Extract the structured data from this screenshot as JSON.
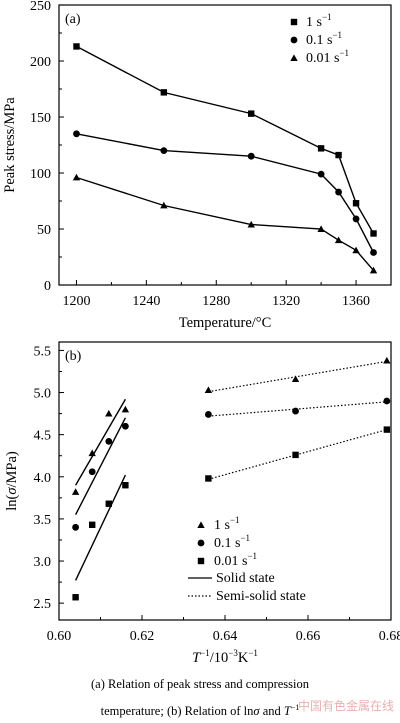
{
  "chart_data": [
    {
      "type": "line",
      "panel_label": "(a)",
      "xlabel": "Temperature/°C",
      "ylabel": "Peak stress/MPa",
      "xlim": [
        1190,
        1380
      ],
      "ylim": [
        0,
        250
      ],
      "x_ticks": [
        "1200",
        "1240",
        "1280",
        "1320",
        "1360"
      ],
      "y_ticks": [
        "0",
        "50",
        "100",
        "150",
        "200",
        "250"
      ],
      "legend_position": "top-right",
      "series": [
        {
          "name": "1 s",
          "sup": "−1",
          "marker": "square",
          "points": [
            [
              1200,
              213
            ],
            [
              1250,
              172
            ],
            [
              1300,
              153
            ],
            [
              1340,
              122
            ],
            [
              1350,
              116
            ],
            [
              1360,
              73
            ],
            [
              1370,
              46
            ]
          ]
        },
        {
          "name": "0.1 s",
          "sup": "−1",
          "marker": "circle",
          "points": [
            [
              1200,
              135
            ],
            [
              1250,
              120
            ],
            [
              1300,
              115
            ],
            [
              1340,
              99
            ],
            [
              1350,
              83
            ],
            [
              1360,
              59
            ],
            [
              1370,
              29
            ]
          ]
        },
        {
          "name": "0.01 s",
          "sup": "−1",
          "marker": "triangle",
          "points": [
            [
              1200,
              96
            ],
            [
              1250,
              71
            ],
            [
              1300,
              54
            ],
            [
              1340,
              50
            ],
            [
              1350,
              40
            ],
            [
              1360,
              31
            ],
            [
              1370,
              13
            ]
          ]
        }
      ]
    },
    {
      "type": "scatter",
      "panel_label": "(b)",
      "xlabel_main": "T",
      "xlabel_sup1": "−1",
      "xlabel_mid": "/10",
      "xlabel_sup2": "−3",
      "xlabel_end": "K",
      "xlabel_sup3": "−1",
      "ylabel_pre": "ln(",
      "ylabel_sym": "σ",
      "ylabel_post": "/MPa)",
      "xlim": [
        0.6,
        0.68
      ],
      "ylim": [
        2.3,
        5.6
      ],
      "x_ticks": [
        "0.60",
        "0.62",
        "0.64",
        "0.66",
        "0.68"
      ],
      "y_ticks": [
        "2.5",
        "3.0",
        "3.5",
        "4.0",
        "4.5",
        "5.0",
        "5.5"
      ],
      "legend_position": "bottom-center",
      "series": [
        {
          "name": "1 s",
          "sup": "−1",
          "marker": "triangle",
          "solid_points": [
            [
              0.604,
              3.82
            ],
            [
              0.608,
              4.28
            ],
            [
              0.612,
              4.75
            ],
            [
              0.616,
              4.8
            ]
          ],
          "solid_fit": [
            [
              0.604,
              3.9
            ],
            [
              0.616,
              4.92
            ]
          ],
          "semi_points": [
            [
              0.636,
              5.03
            ],
            [
              0.657,
              5.16
            ],
            [
              0.679,
              5.38
            ]
          ],
          "semi_fit": [
            [
              0.636,
              5.01
            ],
            [
              0.679,
              5.37
            ]
          ]
        },
        {
          "name": "0.1 s",
          "sup": "−1",
          "marker": "circle",
          "solid_points": [
            [
              0.604,
              3.4
            ],
            [
              0.608,
              4.06
            ],
            [
              0.612,
              4.42
            ],
            [
              0.616,
              4.6
            ]
          ],
          "solid_fit": [
            [
              0.604,
              3.55
            ],
            [
              0.616,
              4.7
            ]
          ],
          "semi_points": [
            [
              0.636,
              4.74
            ],
            [
              0.657,
              4.78
            ],
            [
              0.679,
              4.9
            ]
          ],
          "semi_fit": [
            [
              0.636,
              4.72
            ],
            [
              0.679,
              4.89
            ]
          ]
        },
        {
          "name": "0.01 s",
          "sup": "−1",
          "marker": "square",
          "solid_points": [
            [
              0.604,
              2.57
            ],
            [
              0.608,
              3.43
            ],
            [
              0.612,
              3.68
            ],
            [
              0.616,
              3.9
            ]
          ],
          "solid_fit": [
            [
              0.604,
              2.77
            ],
            [
              0.616,
              4.02
            ]
          ],
          "semi_points": [
            [
              0.636,
              3.98
            ],
            [
              0.657,
              4.26
            ],
            [
              0.679,
              4.56
            ]
          ],
          "semi_fit": [
            [
              0.636,
              3.97
            ],
            [
              0.679,
              4.56
            ]
          ]
        }
      ],
      "line_legend": [
        {
          "name": "Solid state",
          "style": "solid"
        },
        {
          "name": "Semi-solid state",
          "style": "dotted"
        }
      ]
    }
  ],
  "caption": {
    "line1": "(a) Relation of peak stress and compression",
    "line2_pre": "temperature; (b) Relation of ln",
    "line2_sym": "σ",
    "line2_mid": " and ",
    "line2_T": "T",
    "line2_sup": "−1"
  },
  "watermark": "中国有色金属在线"
}
